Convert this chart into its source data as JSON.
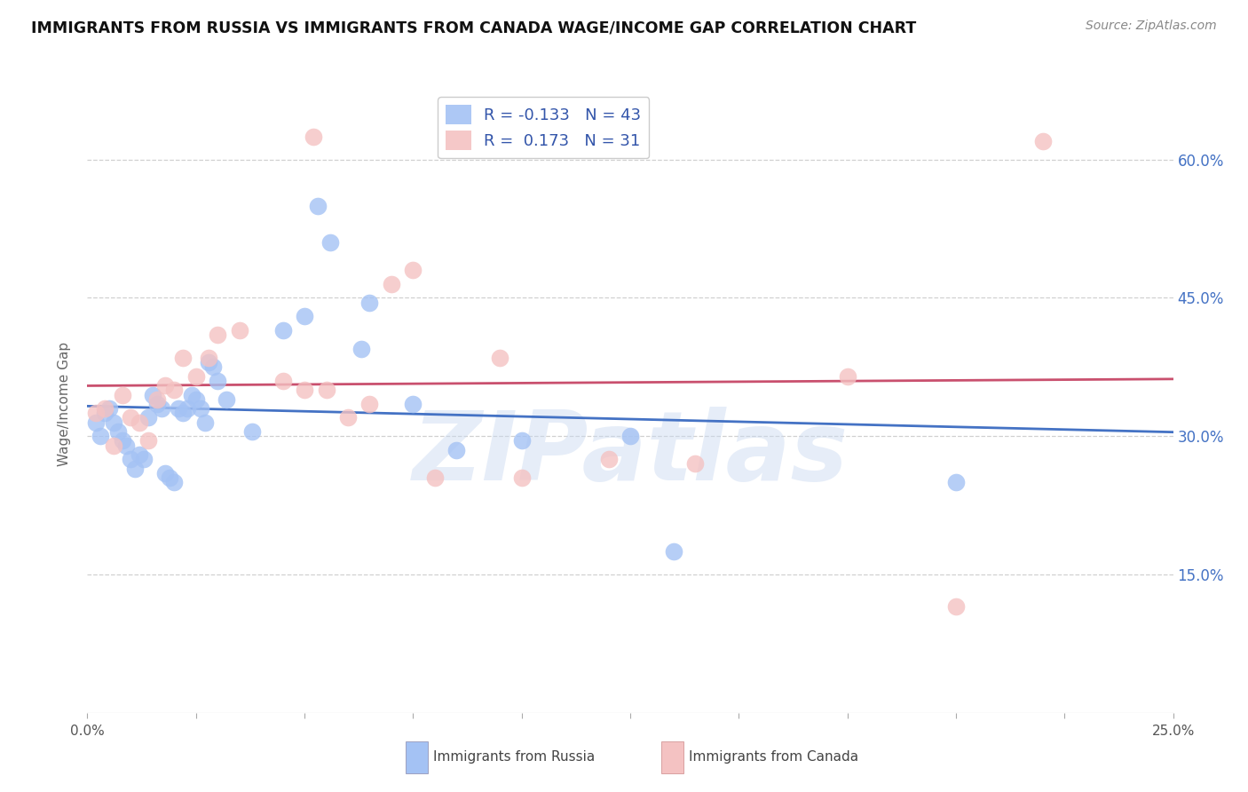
{
  "title": "IMMIGRANTS FROM RUSSIA VS IMMIGRANTS FROM CANADA WAGE/INCOME GAP CORRELATION CHART",
  "source": "Source: ZipAtlas.com",
  "ylabel": "Wage/Income Gap",
  "xlim": [
    0.0,
    25.0
  ],
  "ylim": [
    0.0,
    67.0
  ],
  "yticks_right": [
    15.0,
    30.0,
    45.0,
    60.0
  ],
  "xtick_positions": [
    0,
    2.5,
    5,
    7.5,
    10,
    12.5,
    15,
    17.5,
    20,
    22.5,
    25
  ],
  "watermark": "ZIPatlas",
  "russia_color": "#a4c2f4",
  "canada_color": "#f4c2c2",
  "russia_line_color": "#4472c4",
  "canada_line_color": "#c9506e",
  "russia_R": -0.133,
  "russia_N": 43,
  "canada_R": 0.173,
  "canada_N": 31,
  "russia_scatter": [
    [
      0.2,
      31.5
    ],
    [
      0.3,
      30.0
    ],
    [
      0.4,
      32.5
    ],
    [
      0.5,
      33.0
    ],
    [
      0.6,
      31.5
    ],
    [
      0.7,
      30.5
    ],
    [
      0.8,
      29.5
    ],
    [
      0.9,
      29.0
    ],
    [
      1.0,
      27.5
    ],
    [
      1.1,
      26.5
    ],
    [
      1.2,
      28.0
    ],
    [
      1.3,
      27.5
    ],
    [
      1.4,
      32.0
    ],
    [
      1.5,
      34.5
    ],
    [
      1.6,
      33.5
    ],
    [
      1.7,
      33.0
    ],
    [
      1.8,
      26.0
    ],
    [
      1.9,
      25.5
    ],
    [
      2.0,
      25.0
    ],
    [
      2.1,
      33.0
    ],
    [
      2.2,
      32.5
    ],
    [
      2.3,
      33.0
    ],
    [
      2.4,
      34.5
    ],
    [
      2.5,
      34.0
    ],
    [
      2.6,
      33.0
    ],
    [
      2.7,
      31.5
    ],
    [
      2.8,
      38.0
    ],
    [
      2.9,
      37.5
    ],
    [
      3.0,
      36.0
    ],
    [
      3.2,
      34.0
    ],
    [
      3.8,
      30.5
    ],
    [
      4.5,
      41.5
    ],
    [
      5.0,
      43.0
    ],
    [
      5.3,
      55.0
    ],
    [
      5.6,
      51.0
    ],
    [
      6.3,
      39.5
    ],
    [
      6.5,
      44.5
    ],
    [
      7.5,
      33.5
    ],
    [
      8.5,
      28.5
    ],
    [
      10.0,
      29.5
    ],
    [
      12.5,
      30.0
    ],
    [
      20.0,
      25.0
    ],
    [
      13.5,
      17.5
    ]
  ],
  "canada_scatter": [
    [
      0.2,
      32.5
    ],
    [
      0.4,
      33.0
    ],
    [
      0.6,
      29.0
    ],
    [
      0.8,
      34.5
    ],
    [
      1.0,
      32.0
    ],
    [
      1.2,
      31.5
    ],
    [
      1.4,
      29.5
    ],
    [
      1.6,
      34.0
    ],
    [
      1.8,
      35.5
    ],
    [
      2.0,
      35.0
    ],
    [
      2.2,
      38.5
    ],
    [
      2.5,
      36.5
    ],
    [
      2.8,
      38.5
    ],
    [
      3.0,
      41.0
    ],
    [
      3.5,
      41.5
    ],
    [
      4.5,
      36.0
    ],
    [
      5.0,
      35.0
    ],
    [
      5.2,
      62.5
    ],
    [
      5.5,
      35.0
    ],
    [
      6.0,
      32.0
    ],
    [
      6.5,
      33.5
    ],
    [
      7.0,
      46.5
    ],
    [
      7.5,
      48.0
    ],
    [
      8.0,
      25.5
    ],
    [
      10.0,
      25.5
    ],
    [
      12.0,
      27.5
    ],
    [
      14.0,
      27.0
    ],
    [
      17.5,
      36.5
    ],
    [
      20.0,
      11.5
    ],
    [
      22.0,
      62.0
    ],
    [
      9.5,
      38.5
    ]
  ],
  "grid_color": "#d0d0d0",
  "background_color": "#ffffff"
}
